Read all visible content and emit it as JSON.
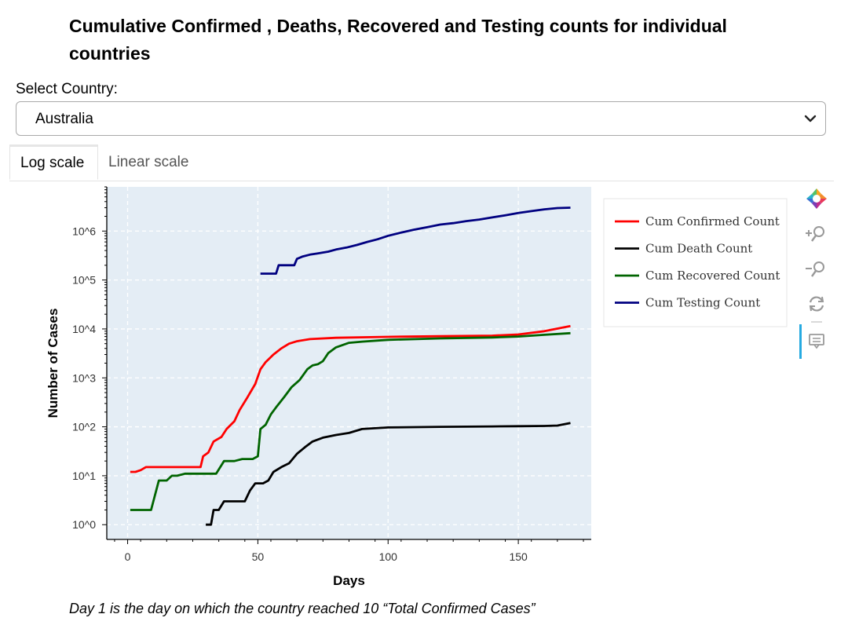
{
  "page": {
    "title": "Cumulative Confirmed , Deaths, Recovered and Testing counts for individual countries",
    "select_label": "Select Country:",
    "selected_country": "Australia",
    "tabs": [
      {
        "label": "Log scale",
        "active": true
      },
      {
        "label": "Linear scale",
        "active": false
      }
    ],
    "footnote": "Day 1 is the day on which the country reached 10 “Total Confirmed Cases”"
  },
  "toolbar": {
    "icons": [
      "bokeh-logo-icon",
      "zoom-in-icon",
      "zoom-out-icon",
      "reset-icon",
      "hover-tooltip-icon"
    ]
  },
  "chart_data": {
    "type": "line",
    "xlabel": "Days",
    "ylabel": "Number of Cases",
    "yscale": "log",
    "xlim": [
      -8,
      178
    ],
    "ylim": [
      0.5,
      8000000
    ],
    "x_ticks": [
      0,
      50,
      100,
      150
    ],
    "y_ticks": [
      {
        "value": 1,
        "label": "10^0"
      },
      {
        "value": 10,
        "label": "10^1"
      },
      {
        "value": 100,
        "label": "10^2"
      },
      {
        "value": 1000,
        "label": "10^3"
      },
      {
        "value": 10000,
        "label": "10^4"
      },
      {
        "value": 100000,
        "label": "10^5"
      },
      {
        "value": 1000000,
        "label": "10^6"
      }
    ],
    "grid": true,
    "background": "#e4edf5",
    "legend_position": "outside-right",
    "series": [
      {
        "name": "Cum Confirmed Count",
        "color": "#ff0000",
        "x": [
          1,
          3,
          5,
          7,
          10,
          20,
          28,
          29,
          31,
          33,
          36,
          38,
          41,
          43,
          46,
          49,
          51,
          53,
          56,
          59,
          62,
          65,
          70,
          80,
          100,
          120,
          140,
          150,
          160,
          170
        ],
        "y": [
          12,
          12,
          13,
          15,
          15,
          15,
          15,
          25,
          30,
          50,
          62,
          90,
          130,
          220,
          400,
          750,
          1500,
          2100,
          3000,
          4000,
          5000,
          5600,
          6200,
          6600,
          6900,
          7100,
          7300,
          7700,
          9000,
          11500
        ]
      },
      {
        "name": "Cum Death Count",
        "color": "#000000",
        "x": [
          30,
          32,
          33,
          35,
          37,
          42,
          45,
          47,
          49,
          52,
          54,
          56,
          59,
          62,
          65,
          68,
          71,
          75,
          80,
          85,
          90,
          100,
          120,
          140,
          150,
          160,
          165,
          170
        ],
        "y": [
          1,
          1,
          2,
          2,
          3,
          3,
          3,
          5,
          7,
          7,
          8,
          12,
          15,
          18,
          28,
          38,
          50,
          60,
          68,
          75,
          90,
          97,
          100,
          102,
          103,
          104,
          106,
          120
        ]
      },
      {
        "name": "Cum Recovered Count",
        "color": "#006400",
        "x": [
          1,
          5,
          9,
          12,
          15,
          17,
          19,
          22,
          28,
          34,
          37,
          41,
          44,
          48,
          50,
          51,
          53,
          55,
          57,
          60,
          63,
          66,
          69,
          71,
          73,
          75,
          77,
          80,
          85,
          90,
          100,
          120,
          140,
          150,
          160,
          170
        ],
        "y": [
          2,
          2,
          2,
          8,
          8,
          10,
          10,
          11,
          11,
          11,
          20,
          20,
          22,
          22,
          25,
          90,
          110,
          180,
          250,
          400,
          650,
          900,
          1500,
          1800,
          1900,
          2200,
          3200,
          4200,
          5200,
          5500,
          6000,
          6400,
          6700,
          7000,
          7600,
          8200
        ]
      },
      {
        "name": "Cum Testing Count",
        "color": "#000080",
        "x": [
          51,
          54,
          57,
          58,
          61,
          64,
          65,
          67,
          70,
          73,
          77,
          80,
          84,
          88,
          92,
          96,
          100,
          105,
          110,
          115,
          120,
          125,
          130,
          135,
          140,
          145,
          150,
          155,
          160,
          165,
          170
        ],
        "y": [
          135000,
          135000,
          135000,
          200000,
          200000,
          200000,
          270000,
          300000,
          330000,
          350000,
          380000,
          420000,
          460000,
          520000,
          600000,
          680000,
          800000,
          930000,
          1070000,
          1200000,
          1360000,
          1450000,
          1600000,
          1720000,
          1900000,
          2100000,
          2350000,
          2550000,
          2780000,
          2950000,
          3000000
        ]
      }
    ]
  }
}
